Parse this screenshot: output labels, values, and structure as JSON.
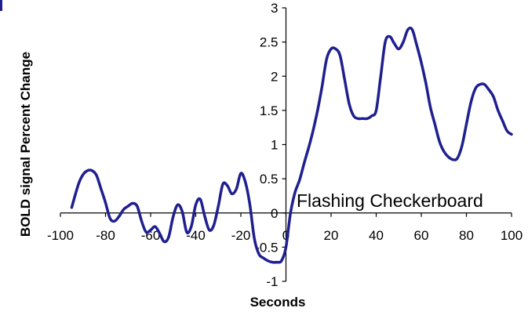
{
  "chart_data": {
    "type": "line",
    "title": "",
    "xlabel": "Seconds",
    "ylabel": "BOLD signal Percent Change",
    "xlim": [
      -100,
      100
    ],
    "ylim": [
      -1,
      3
    ],
    "x_ticks": [
      -100,
      -80,
      -60,
      -40,
      -20,
      0,
      20,
      40,
      60,
      80,
      100
    ],
    "y_ticks": [
      -1,
      -0.5,
      0,
      0.5,
      1,
      1.5,
      2,
      2.5,
      3
    ],
    "x_tick_labels": [
      "-100",
      "-80",
      "-60",
      "-40",
      "-20",
      "0",
      "20",
      "40",
      "60",
      "80",
      "100"
    ],
    "y_tick_labels": [
      "-1",
      "-0.5",
      "0",
      "0.5",
      "1",
      "1.5",
      "2",
      "2.5",
      "3"
    ],
    "grid": false,
    "legend": "none",
    "annotation": "Flashing Checkerboard",
    "series": [
      {
        "color": "#1f1f8f",
        "x": [
          -95,
          -92,
          -90,
          -88,
          -86,
          -84,
          -82,
          -80,
          -78,
          -76,
          -74,
          -72,
          -70,
          -68,
          -66,
          -64,
          -62,
          -60,
          -58,
          -56,
          -54,
          -52,
          -50,
          -48,
          -46,
          -44,
          -42,
          -40,
          -38,
          -36,
          -34,
          -32,
          -30,
          -28,
          -26,
          -24,
          -22,
          -20,
          -18,
          -16,
          -14,
          -12,
          -10,
          -8,
          -6,
          -4,
          -2,
          0,
          2,
          4,
          6,
          8,
          10,
          12,
          14,
          16,
          18,
          20,
          22,
          24,
          26,
          28,
          30,
          32,
          34,
          36,
          38,
          40,
          42,
          44,
          46,
          48,
          50,
          52,
          54,
          56,
          58,
          60,
          62,
          64,
          66,
          68,
          70,
          72,
          74,
          76,
          78,
          80,
          82,
          84,
          86,
          88,
          90,
          92,
          94,
          96,
          98,
          100
        ],
        "y": [
          0.08,
          0.42,
          0.56,
          0.62,
          0.62,
          0.55,
          0.35,
          0.15,
          -0.08,
          -0.12,
          -0.05,
          0.05,
          0.1,
          0.14,
          0.1,
          -0.12,
          -0.28,
          -0.25,
          -0.2,
          -0.3,
          -0.42,
          -0.35,
          -0.05,
          0.12,
          0.02,
          -0.28,
          -0.2,
          0.12,
          0.2,
          -0.05,
          -0.25,
          -0.18,
          0.1,
          0.42,
          0.4,
          0.28,
          0.35,
          0.58,
          0.45,
          0.12,
          -0.38,
          -0.6,
          -0.66,
          -0.7,
          -0.72,
          -0.72,
          -0.7,
          -0.5,
          0.0,
          0.3,
          0.48,
          0.72,
          0.95,
          1.2,
          1.5,
          1.85,
          2.25,
          2.4,
          2.4,
          2.3,
          1.95,
          1.6,
          1.42,
          1.38,
          1.38,
          1.38,
          1.42,
          1.5,
          2.0,
          2.5,
          2.58,
          2.48,
          2.4,
          2.5,
          2.68,
          2.68,
          2.45,
          2.2,
          1.9,
          1.55,
          1.3,
          1.05,
          0.9,
          0.82,
          0.78,
          0.8,
          0.98,
          1.3,
          1.62,
          1.82,
          1.88,
          1.88,
          1.8,
          1.7,
          1.5,
          1.35,
          1.2,
          1.15
        ]
      }
    ]
  }
}
